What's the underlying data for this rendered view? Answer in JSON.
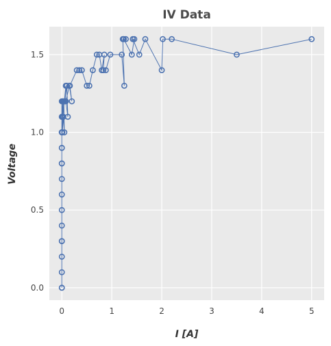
{
  "chart_data": {
    "type": "line",
    "title": "IV Data",
    "xlabel": "I [A]",
    "ylabel": "Voltage",
    "xlim": [
      -0.25,
      5.25
    ],
    "ylim": [
      -0.08,
      1.68
    ],
    "x_ticks": [
      0,
      1,
      2,
      3,
      4,
      5
    ],
    "y_ticks": [
      0.0,
      0.5,
      1.0,
      1.5
    ],
    "x_tick_labels": [
      "0",
      "1",
      "2",
      "3",
      "4",
      "5"
    ],
    "y_tick_labels": [
      "0.0",
      "0.5",
      "1.0",
      "1.5"
    ],
    "grid": true,
    "colors": {
      "series": "#4c72b0",
      "plot_bg": "#eaeaea",
      "grid": "#ffffff"
    },
    "series": [
      {
        "x": [
          0,
          0,
          0,
          0,
          0,
          0,
          0,
          0,
          0,
          0,
          0,
          0,
          0,
          0,
          0,
          0,
          0,
          0,
          0,
          0,
          0.02,
          0.01,
          0.03,
          0.05,
          0.04,
          0.02,
          0.08,
          0.06,
          0.1,
          0.12,
          0.08,
          0.15,
          0.2,
          0.16,
          0.3,
          0.35,
          0.4,
          0.5,
          0.55,
          0.62,
          0.7,
          0.75,
          0.8,
          0.85,
          0.83,
          0.88,
          0.97,
          1.2,
          1.25,
          1.22,
          1.28,
          1.24,
          1.4,
          1.45,
          1.42,
          1.55,
          1.67,
          2.0,
          2.02,
          2.2,
          3.5,
          5.0
        ],
        "y": [
          0.0,
          0.0,
          0.1,
          0.2,
          0.3,
          0.3,
          0.4,
          0.5,
          0.6,
          0.7,
          0.8,
          0.8,
          0.9,
          0.9,
          1.0,
          1.0,
          1.1,
          1.0,
          1.2,
          1.1,
          1.2,
          1.0,
          1.1,
          1.0,
          1.2,
          1.1,
          1.3,
          1.2,
          1.3,
          1.1,
          1.2,
          1.3,
          1.2,
          1.3,
          1.4,
          1.4,
          1.4,
          1.3,
          1.3,
          1.4,
          1.5,
          1.5,
          1.4,
          1.5,
          1.4,
          1.4,
          1.5,
          1.5,
          1.3,
          1.6,
          1.6,
          1.6,
          1.5,
          1.6,
          1.6,
          1.5,
          1.6,
          1.4,
          1.6,
          1.6,
          1.5,
          1.6
        ]
      }
    ]
  }
}
